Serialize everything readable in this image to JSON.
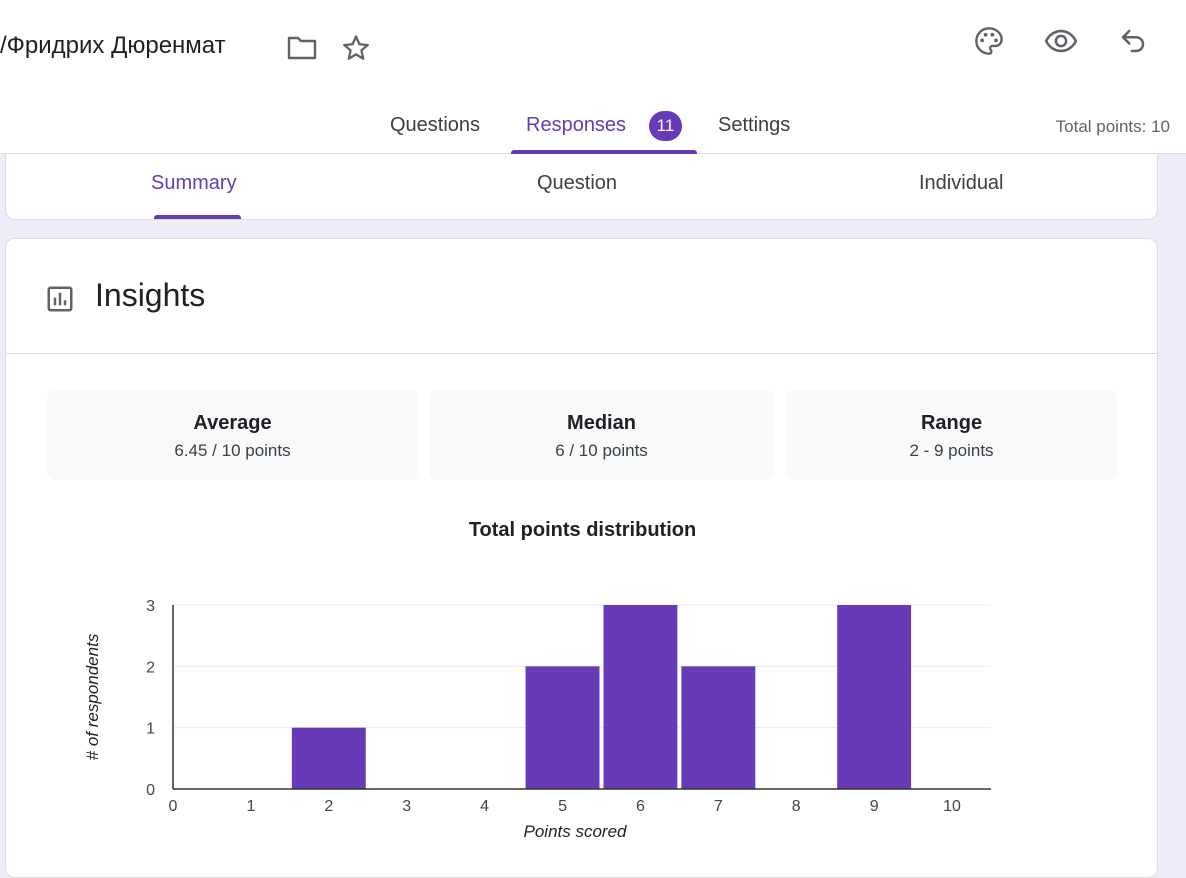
{
  "header": {
    "doc_title": "/Фридрих Дюренмат",
    "icons": {
      "folder": "folder-icon",
      "star": "star-icon",
      "palette": "palette-icon",
      "preview": "eye-icon",
      "undo": "undo-icon"
    }
  },
  "main_tabs": {
    "questions": "Questions",
    "responses": "Responses",
    "responses_count": "11",
    "settings": "Settings",
    "active": "responses"
  },
  "total_points": "Total points: 10",
  "sub_tabs": {
    "summary": "Summary",
    "question": "Question",
    "individual": "Individual",
    "active": "summary"
  },
  "insights": {
    "title": "Insights",
    "stats": {
      "average_label": "Average",
      "average_value": "6.45 / 10 points",
      "median_label": "Median",
      "median_value": "6 / 10 points",
      "range_label": "Range",
      "range_value": "2 - 9 points"
    }
  },
  "chart_data": {
    "type": "bar",
    "title": "Total points distribution",
    "xlabel": "Points scored",
    "ylabel": "# of respondents",
    "categories": [
      "0",
      "1",
      "2",
      "3",
      "4",
      "5",
      "6",
      "7",
      "8",
      "9",
      "10"
    ],
    "values": [
      0,
      0,
      1,
      0,
      0,
      2,
      3,
      2,
      0,
      3,
      0
    ],
    "ylim": [
      0,
      3
    ],
    "yticks": [
      "0",
      "1",
      "2",
      "3"
    ],
    "grid": true,
    "bar_color": "#673ab7"
  },
  "colors": {
    "accent": "#673ab7",
    "background": "#f0ebf8"
  }
}
